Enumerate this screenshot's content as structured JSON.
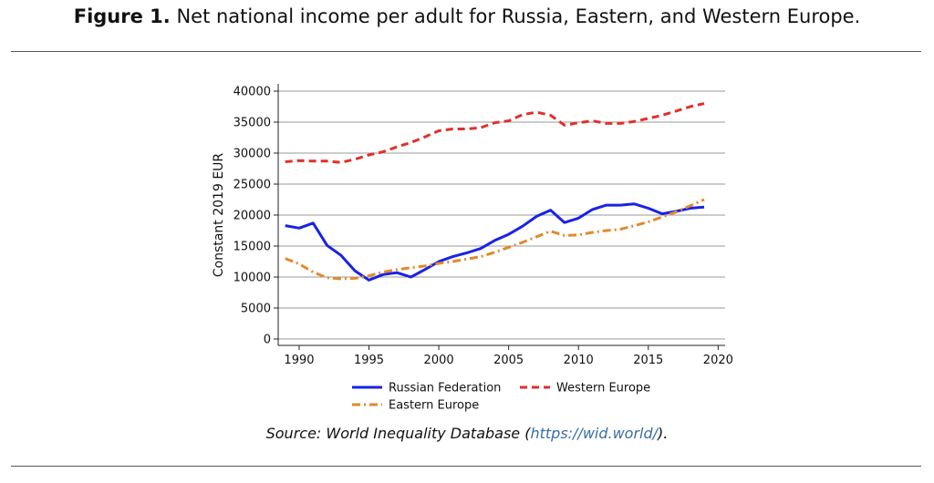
{
  "figure": {
    "label": "Figure 1.",
    "title": "Net national income per adult for Russia, Eastern, and Western Europe."
  },
  "source": {
    "prefix": "Source: World Inequality Database (",
    "link_text": "https://wid.world/",
    "suffix": ")."
  },
  "chart_data": {
    "type": "line",
    "title": "",
    "xlabel": "",
    "ylabel": "Constant 2019 EUR",
    "xlim": [
      1988.5,
      2020.5
    ],
    "ylim": [
      0,
      40000
    ],
    "x_ticks": [
      1990,
      1995,
      2000,
      2005,
      2010,
      2015,
      2020
    ],
    "x_tick_labels": [
      "1990",
      "1995",
      "2000",
      "2005",
      "2010",
      "2015",
      "2020"
    ],
    "y_ticks": [
      0,
      5000,
      10000,
      15000,
      20000,
      25000,
      30000,
      35000,
      40000
    ],
    "y_tick_labels": [
      "0",
      "5000",
      "10000",
      "15000",
      "20000",
      "25000",
      "30000",
      "35000",
      "40000"
    ],
    "grid": "horizontal",
    "legend_position": "bottom",
    "x": [
      1989,
      1990,
      1991,
      1992,
      1993,
      1994,
      1995,
      1996,
      1997,
      1998,
      1999,
      2000,
      2001,
      2002,
      2003,
      2004,
      2005,
      2006,
      2007,
      2008,
      2009,
      2010,
      2011,
      2012,
      2013,
      2014,
      2015,
      2016,
      2017,
      2018,
      2019
    ],
    "series": [
      {
        "name": "Russian Federation",
        "color": "#1a22e6",
        "style": "solid",
        "values": [
          18300,
          17900,
          18700,
          15100,
          13500,
          11000,
          9500,
          10400,
          10700,
          10000,
          11200,
          12500,
          13300,
          13900,
          14600,
          15900,
          16900,
          18200,
          19800,
          20800,
          18800,
          19500,
          20900,
          21600,
          21600,
          21800,
          21100,
          20200,
          20600,
          21100,
          21300
        ]
      },
      {
        "name": "Western Europe",
        "color": "#e0302a",
        "style": "dashed",
        "values": [
          28600,
          28800,
          28700,
          28700,
          28500,
          29000,
          29700,
          30200,
          31000,
          31700,
          32600,
          33600,
          33900,
          33900,
          34100,
          34900,
          35200,
          36200,
          36600,
          36100,
          34500,
          34900,
          35200,
          34800,
          34800,
          35100,
          35600,
          36100,
          36800,
          37500,
          38000
        ]
      },
      {
        "name": "Eastern Europe",
        "color": "#e08a2e",
        "style": "dashdot",
        "values": [
          13000,
          12100,
          10800,
          9900,
          9700,
          9800,
          10200,
          10800,
          11200,
          11500,
          11800,
          12200,
          12500,
          12900,
          13300,
          14000,
          14800,
          15600,
          16500,
          17400,
          16700,
          16800,
          17200,
          17500,
          17700,
          18300,
          18900,
          19700,
          20500,
          21500,
          22500
        ]
      }
    ]
  }
}
